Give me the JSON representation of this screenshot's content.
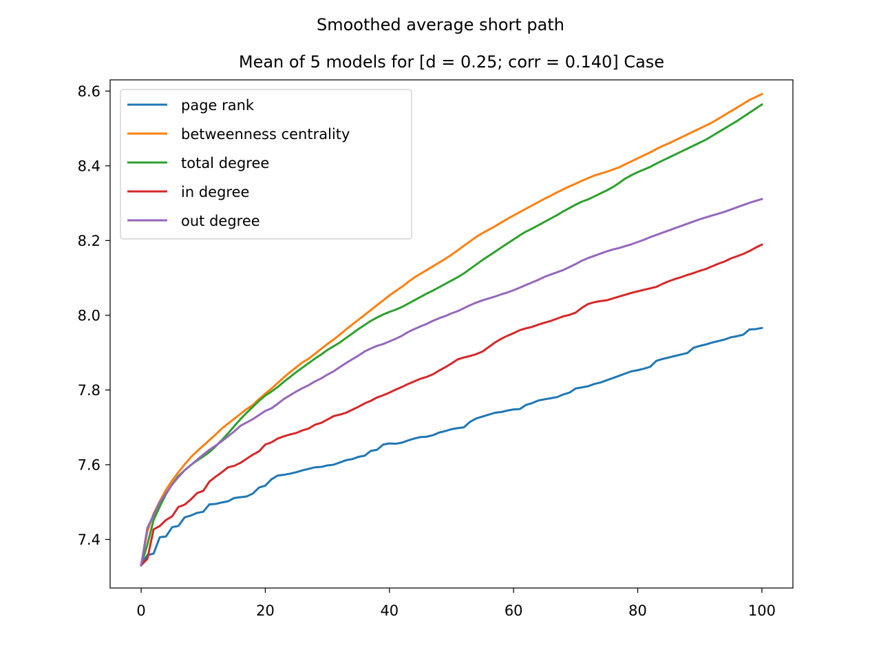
{
  "chart_data": {
    "type": "line",
    "suptitle": "Smoothed average short path",
    "title": "Mean of 5 models for [d = 0.25; corr = 0.140] Case",
    "xlabel": "",
    "ylabel": "",
    "xlim": [
      -5,
      105
    ],
    "ylim": [
      7.27,
      8.63
    ],
    "xticks": [
      0,
      20,
      40,
      60,
      80,
      100
    ],
    "yticks": [
      7.4,
      7.6,
      7.8,
      8.0,
      8.2,
      8.4,
      8.6
    ],
    "ytick_labels": [
      "7.4",
      "7.6",
      "7.8",
      "8.0",
      "8.2",
      "8.4",
      "8.6"
    ],
    "grid": false,
    "legend_position": "upper-left",
    "x": [
      0,
      1,
      2,
      3,
      4,
      5,
      6,
      7,
      8,
      9,
      10,
      11,
      12,
      13,
      14,
      15,
      16,
      17,
      18,
      19,
      20,
      21,
      22,
      23,
      24,
      25,
      26,
      27,
      28,
      29,
      30,
      31,
      32,
      33,
      34,
      35,
      36,
      37,
      38,
      39,
      40,
      41,
      42,
      43,
      44,
      45,
      46,
      47,
      48,
      49,
      50,
      51,
      52,
      53,
      54,
      55,
      56,
      57,
      58,
      59,
      60,
      61,
      62,
      63,
      64,
      65,
      66,
      67,
      68,
      69,
      70,
      71,
      72,
      73,
      74,
      75,
      76,
      77,
      78,
      79,
      80,
      81,
      82,
      83,
      84,
      85,
      86,
      87,
      88,
      89,
      90,
      91,
      92,
      93,
      94,
      95,
      96,
      97,
      98,
      99,
      100
    ],
    "series": [
      {
        "name": "page rank",
        "color": "#1f77b4",
        "values": [
          7.331,
          7.358,
          7.362,
          7.406,
          7.408,
          7.433,
          7.436,
          7.459,
          7.464,
          7.471,
          7.474,
          7.494,
          7.495,
          7.499,
          7.502,
          7.511,
          7.513,
          7.515,
          7.523,
          7.539,
          7.544,
          7.561,
          7.571,
          7.573,
          7.576,
          7.58,
          7.585,
          7.589,
          7.593,
          7.594,
          7.598,
          7.6,
          7.606,
          7.612,
          7.615,
          7.621,
          7.624,
          7.637,
          7.64,
          7.654,
          7.657,
          7.656,
          7.659,
          7.665,
          7.67,
          7.674,
          7.675,
          7.679,
          7.686,
          7.69,
          7.695,
          7.698,
          7.7,
          7.715,
          7.724,
          7.729,
          7.734,
          7.739,
          7.741,
          7.745,
          7.748,
          7.749,
          7.76,
          7.765,
          7.772,
          7.775,
          7.778,
          7.781,
          7.788,
          7.793,
          7.804,
          7.807,
          7.81,
          7.816,
          7.82,
          7.826,
          7.832,
          7.838,
          7.844,
          7.85,
          7.853,
          7.857,
          7.862,
          7.878,
          7.883,
          7.887,
          7.891,
          7.895,
          7.899,
          7.913,
          7.918,
          7.922,
          7.927,
          7.931,
          7.935,
          7.941,
          7.944,
          7.948,
          7.962,
          7.963,
          7.966
        ]
      },
      {
        "name": "betweenness centrality",
        "color": "#ff7f0e",
        "values": [
          7.331,
          7.421,
          7.469,
          7.502,
          7.533,
          7.558,
          7.58,
          7.601,
          7.62,
          7.636,
          7.651,
          7.666,
          7.681,
          7.697,
          7.71,
          7.723,
          7.736,
          7.749,
          7.76,
          7.776,
          7.79,
          7.804,
          7.819,
          7.834,
          7.848,
          7.861,
          7.874,
          7.884,
          7.897,
          7.91,
          7.923,
          7.935,
          7.948,
          7.962,
          7.975,
          7.988,
          8.001,
          8.014,
          8.027,
          8.04,
          8.053,
          8.065,
          8.076,
          8.089,
          8.101,
          8.111,
          8.121,
          8.131,
          8.141,
          8.151,
          8.162,
          8.174,
          8.186,
          8.198,
          8.21,
          8.22,
          8.229,
          8.238,
          8.248,
          8.258,
          8.267,
          8.276,
          8.285,
          8.294,
          8.303,
          8.312,
          8.32,
          8.329,
          8.337,
          8.345,
          8.352,
          8.36,
          8.367,
          8.374,
          8.379,
          8.384,
          8.39,
          8.396,
          8.404,
          8.412,
          8.42,
          8.428,
          8.436,
          8.445,
          8.453,
          8.46,
          8.468,
          8.476,
          8.484,
          8.492,
          8.5,
          8.508,
          8.516,
          8.526,
          8.536,
          8.546,
          8.556,
          8.566,
          8.576,
          8.584,
          8.592
        ]
      },
      {
        "name": "total degree",
        "color": "#2ca02c",
        "values": [
          7.331,
          7.386,
          7.452,
          7.488,
          7.521,
          7.548,
          7.57,
          7.585,
          7.599,
          7.611,
          7.622,
          7.634,
          7.649,
          7.666,
          7.684,
          7.703,
          7.722,
          7.739,
          7.755,
          7.771,
          7.785,
          7.796,
          7.808,
          7.822,
          7.835,
          7.848,
          7.86,
          7.872,
          7.884,
          7.895,
          7.907,
          7.917,
          7.927,
          7.939,
          7.951,
          7.963,
          7.974,
          7.985,
          7.994,
          8.002,
          8.009,
          8.015,
          8.022,
          8.031,
          8.04,
          8.049,
          8.058,
          8.066,
          8.075,
          8.084,
          8.093,
          8.102,
          8.112,
          8.124,
          8.136,
          8.148,
          8.159,
          8.17,
          8.181,
          8.192,
          8.203,
          8.214,
          8.224,
          8.232,
          8.241,
          8.25,
          8.259,
          8.268,
          8.278,
          8.287,
          8.296,
          8.304,
          8.31,
          8.318,
          8.326,
          8.334,
          8.343,
          8.354,
          8.366,
          8.375,
          8.383,
          8.39,
          8.397,
          8.406,
          8.414,
          8.422,
          8.43,
          8.438,
          8.446,
          8.454,
          8.462,
          8.47,
          8.48,
          8.49,
          8.5,
          8.51,
          8.52,
          8.531,
          8.542,
          8.553,
          8.564
        ]
      },
      {
        "name": "in degree",
        "color": "#d62728",
        "values": [
          7.331,
          7.348,
          7.427,
          7.436,
          7.452,
          7.462,
          7.487,
          7.493,
          7.507,
          7.524,
          7.53,
          7.555,
          7.568,
          7.58,
          7.593,
          7.597,
          7.605,
          7.616,
          7.627,
          7.636,
          7.654,
          7.66,
          7.67,
          7.676,
          7.681,
          7.685,
          7.692,
          7.697,
          7.707,
          7.712,
          7.721,
          7.73,
          7.734,
          7.739,
          7.747,
          7.755,
          7.764,
          7.771,
          7.78,
          7.786,
          7.793,
          7.801,
          7.808,
          7.816,
          7.823,
          7.83,
          7.835,
          7.842,
          7.852,
          7.861,
          7.871,
          7.882,
          7.887,
          7.891,
          7.896,
          7.903,
          7.915,
          7.927,
          7.937,
          7.945,
          7.952,
          7.96,
          7.965,
          7.969,
          7.975,
          7.98,
          7.985,
          7.991,
          7.997,
          8.001,
          8.007,
          8.02,
          8.03,
          8.035,
          8.038,
          8.04,
          8.045,
          8.05,
          8.055,
          8.06,
          8.064,
          8.068,
          8.072,
          8.076,
          8.084,
          8.091,
          8.097,
          8.102,
          8.108,
          8.113,
          8.119,
          8.124,
          8.131,
          8.138,
          8.144,
          8.152,
          8.158,
          8.164,
          8.172,
          8.181,
          8.189
        ]
      },
      {
        "name": "out degree",
        "color": "#9467bd",
        "values": [
          7.331,
          7.431,
          7.465,
          7.5,
          7.523,
          7.547,
          7.567,
          7.585,
          7.599,
          7.613,
          7.627,
          7.64,
          7.651,
          7.663,
          7.676,
          7.689,
          7.704,
          7.713,
          7.722,
          7.733,
          7.744,
          7.751,
          7.763,
          7.776,
          7.786,
          7.796,
          7.805,
          7.813,
          7.823,
          7.831,
          7.841,
          7.85,
          7.861,
          7.872,
          7.882,
          7.892,
          7.903,
          7.911,
          7.918,
          7.923,
          7.93,
          7.937,
          7.945,
          7.955,
          7.963,
          7.97,
          7.977,
          7.985,
          7.992,
          7.998,
          8.005,
          8.011,
          8.019,
          8.027,
          8.034,
          8.04,
          8.045,
          8.05,
          8.056,
          8.061,
          8.067,
          8.074,
          8.081,
          8.088,
          8.095,
          8.103,
          8.109,
          8.115,
          8.121,
          8.129,
          8.137,
          8.146,
          8.153,
          8.159,
          8.165,
          8.171,
          8.176,
          8.18,
          8.185,
          8.19,
          8.196,
          8.202,
          8.209,
          8.215,
          8.221,
          8.227,
          8.233,
          8.239,
          8.245,
          8.251,
          8.257,
          8.262,
          8.267,
          8.272,
          8.277,
          8.283,
          8.289,
          8.295,
          8.301,
          8.306,
          8.311
        ]
      }
    ]
  }
}
